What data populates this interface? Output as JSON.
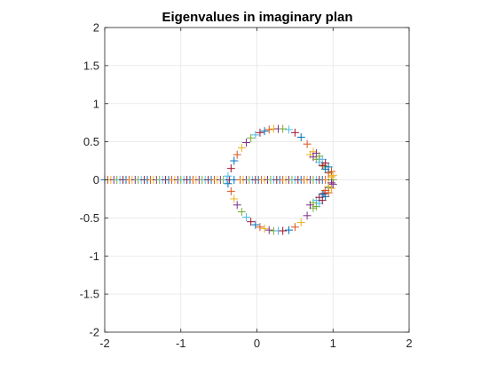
{
  "chart_data": {
    "type": "scatter",
    "title": "Eigenvalues in imaginary plan",
    "xlabel": "",
    "ylabel": "",
    "xlim": [
      -2,
      2
    ],
    "ylim": [
      -2,
      2
    ],
    "xticks": [
      -2,
      -1,
      0,
      1,
      2
    ],
    "yticks": [
      -2,
      -1.5,
      -1,
      -0.5,
      0,
      0.5,
      1,
      1.5,
      2
    ],
    "xtick_labels": [
      "-2",
      "-1",
      "0",
      "1",
      "2"
    ],
    "ytick_labels": [
      "-2",
      "-1.5",
      "-1",
      "-0.5",
      "0",
      "0.5",
      "1",
      "1.5",
      "2"
    ],
    "grid": true,
    "marker": "+",
    "colors": [
      "#0072BD",
      "#D95319",
      "#EDB120",
      "#7E2F8E",
      "#77AC30",
      "#4DBEEE",
      "#A2142F"
    ],
    "series": [
      {
        "values_desc": "real axis",
        "x": [
          -2.0,
          -1.96,
          -1.92,
          -1.88,
          -1.84,
          -1.8,
          -1.76,
          -1.72,
          -1.68,
          -1.64,
          -1.6,
          -1.56,
          -1.52,
          -1.48,
          -1.44,
          -1.4,
          -1.36,
          -1.32,
          -1.28,
          -1.24,
          -1.2,
          -1.16,
          -1.12,
          -1.08,
          -1.04,
          -1.0,
          -0.96,
          -0.92,
          -0.88,
          -0.84,
          -0.8,
          -0.76,
          -0.72,
          -0.68,
          -0.64,
          -0.6,
          -0.56,
          -0.52,
          -0.48,
          -0.44,
          -0.4,
          -0.36,
          -0.3,
          -0.22,
          -0.18,
          -0.14,
          -0.1,
          -0.06,
          -0.02,
          0.02,
          0.06,
          0.1,
          0.14,
          0.18,
          0.22,
          0.26,
          0.3,
          0.34,
          0.38,
          0.42,
          0.46,
          0.5,
          0.54,
          0.58,
          0.62,
          0.66,
          0.7,
          0.74,
          0.78,
          0.82,
          0.86,
          0.9,
          0.94,
          0.98,
          1.0
        ],
        "y": [
          0,
          0,
          0,
          0,
          0,
          0,
          0,
          0,
          0,
          0,
          0,
          0,
          0,
          0,
          0,
          0,
          0,
          0,
          0,
          0,
          0,
          0,
          0,
          0,
          0,
          0,
          0,
          0,
          0,
          0,
          0,
          0,
          0,
          0,
          0,
          0,
          0,
          0,
          0,
          0,
          0,
          0,
          0,
          0,
          0,
          0,
          0,
          0,
          0,
          0,
          0,
          0,
          0,
          0,
          0,
          0,
          0,
          0,
          0,
          0,
          0,
          0,
          0,
          0,
          0,
          0,
          0,
          0,
          0,
          0,
          0,
          0,
          0,
          0,
          0
        ]
      },
      {
        "values_desc": "upper circle",
        "x": [
          -0.38,
          -0.34,
          -0.3,
          -0.26,
          -0.2,
          -0.14,
          -0.08,
          -0.02,
          0.04,
          0.1,
          0.16,
          0.22,
          0.28,
          0.34,
          0.42,
          0.5,
          0.58,
          0.66,
          0.74,
          0.82,
          0.88,
          0.94,
          0.98
        ],
        "y": [
          0.05,
          0.15,
          0.25,
          0.33,
          0.42,
          0.49,
          0.55,
          0.59,
          0.62,
          0.64,
          0.66,
          0.67,
          0.67,
          0.67,
          0.66,
          0.62,
          0.56,
          0.47,
          0.37,
          0.27,
          0.18,
          0.1,
          0.04
        ]
      },
      {
        "values_desc": "lower circle",
        "x": [
          -0.38,
          -0.34,
          -0.3,
          -0.26,
          -0.2,
          -0.14,
          -0.08,
          -0.02,
          0.04,
          0.1,
          0.16,
          0.22,
          0.28,
          0.34,
          0.42,
          0.5,
          0.58,
          0.66,
          0.74,
          0.82,
          0.88,
          0.94,
          0.98
        ],
        "y": [
          -0.05,
          -0.15,
          -0.25,
          -0.33,
          -0.42,
          -0.49,
          -0.55,
          -0.59,
          -0.62,
          -0.64,
          -0.66,
          -0.67,
          -0.67,
          -0.67,
          -0.66,
          -0.62,
          -0.56,
          -0.47,
          -0.37,
          -0.27,
          -0.18,
          -0.1,
          -0.04
        ]
      },
      {
        "values_desc": "upper arrow branch",
        "x": [
          0.7,
          0.74,
          0.78,
          0.82,
          0.86,
          0.9,
          0.94,
          0.98,
          0.78,
          0.82,
          0.86,
          0.9,
          0.94,
          0.98,
          1.0
        ],
        "y": [
          0.33,
          0.3,
          0.27,
          0.23,
          0.19,
          0.14,
          0.09,
          0.04,
          0.35,
          0.31,
          0.27,
          0.22,
          0.17,
          0.11,
          0.06
        ]
      },
      {
        "values_desc": "lower arrow branch",
        "x": [
          0.7,
          0.74,
          0.78,
          0.82,
          0.86,
          0.9,
          0.94,
          0.98,
          0.78,
          0.82,
          0.86,
          0.9,
          0.94,
          0.98,
          1.0
        ],
        "y": [
          -0.33,
          -0.3,
          -0.27,
          -0.23,
          -0.19,
          -0.14,
          -0.09,
          -0.04,
          -0.35,
          -0.31,
          -0.27,
          -0.22,
          -0.17,
          -0.11,
          -0.06
        ]
      }
    ]
  }
}
